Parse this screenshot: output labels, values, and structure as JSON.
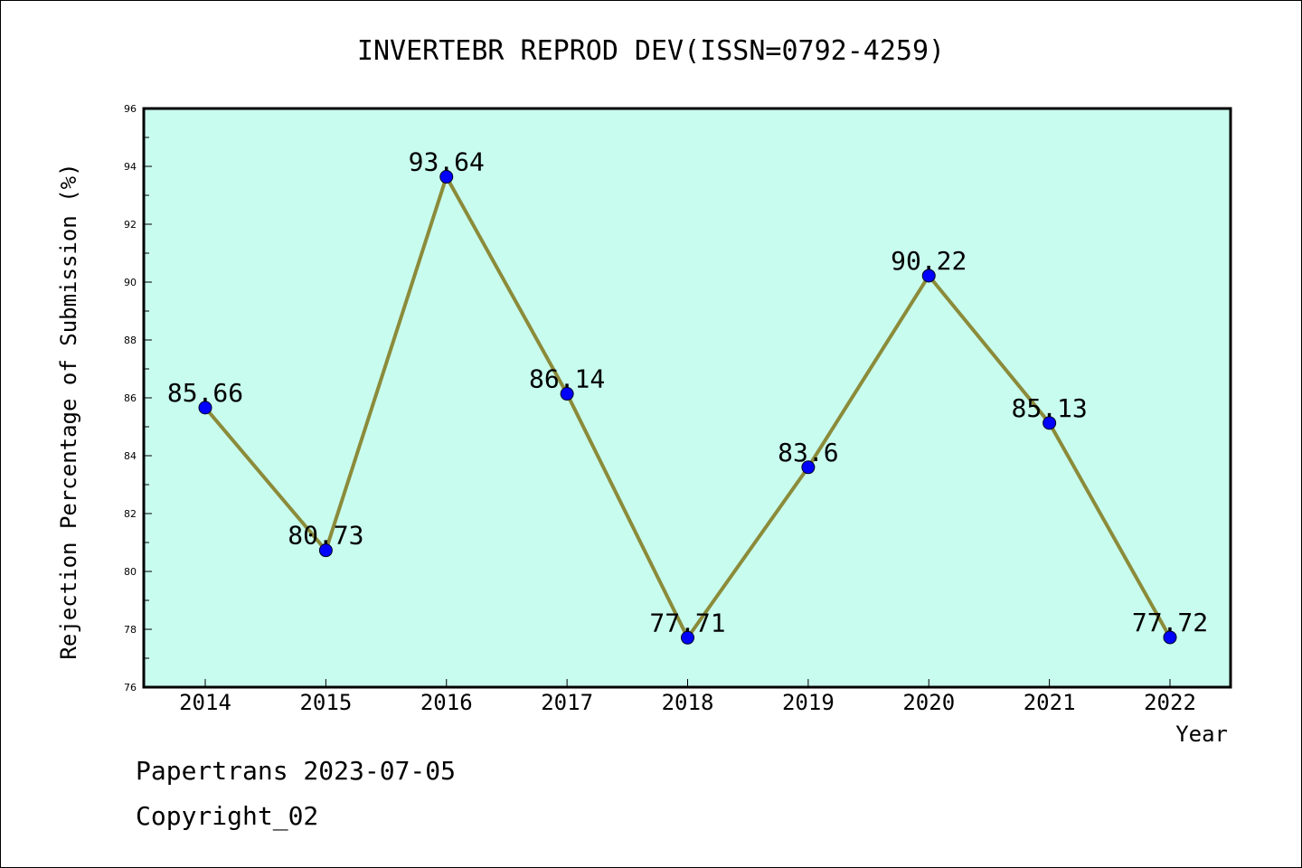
{
  "chart_data": {
    "type": "line",
    "title": "INVERTEBR REPROD DEV(ISSN=0792-4259)",
    "xlabel": "Year",
    "ylabel": "Rejection Percentage of Submission (%)",
    "categories": [
      "2014",
      "2015",
      "2016",
      "2017",
      "2018",
      "2019",
      "2020",
      "2021",
      "2022"
    ],
    "values": [
      85.66,
      80.73,
      93.64,
      86.14,
      77.71,
      83.6,
      90.22,
      85.13,
      77.72
    ],
    "data_labels": [
      "85.66",
      "80.73",
      "93.64",
      "86.14",
      "77.71",
      "83.6",
      "90.22",
      "85.13",
      "77.72"
    ],
    "ylim": [
      76,
      96
    ],
    "yticks": [
      76,
      78,
      80,
      82,
      84,
      86,
      88,
      90,
      92,
      94,
      96
    ],
    "grid": false,
    "colors": {
      "plot_background": "#c8fcee",
      "line": "#8b8b3a",
      "marker": "#0000ff"
    }
  },
  "footer": {
    "line1": "Papertrans 2023-07-05",
    "line2": "Copyright_02"
  }
}
